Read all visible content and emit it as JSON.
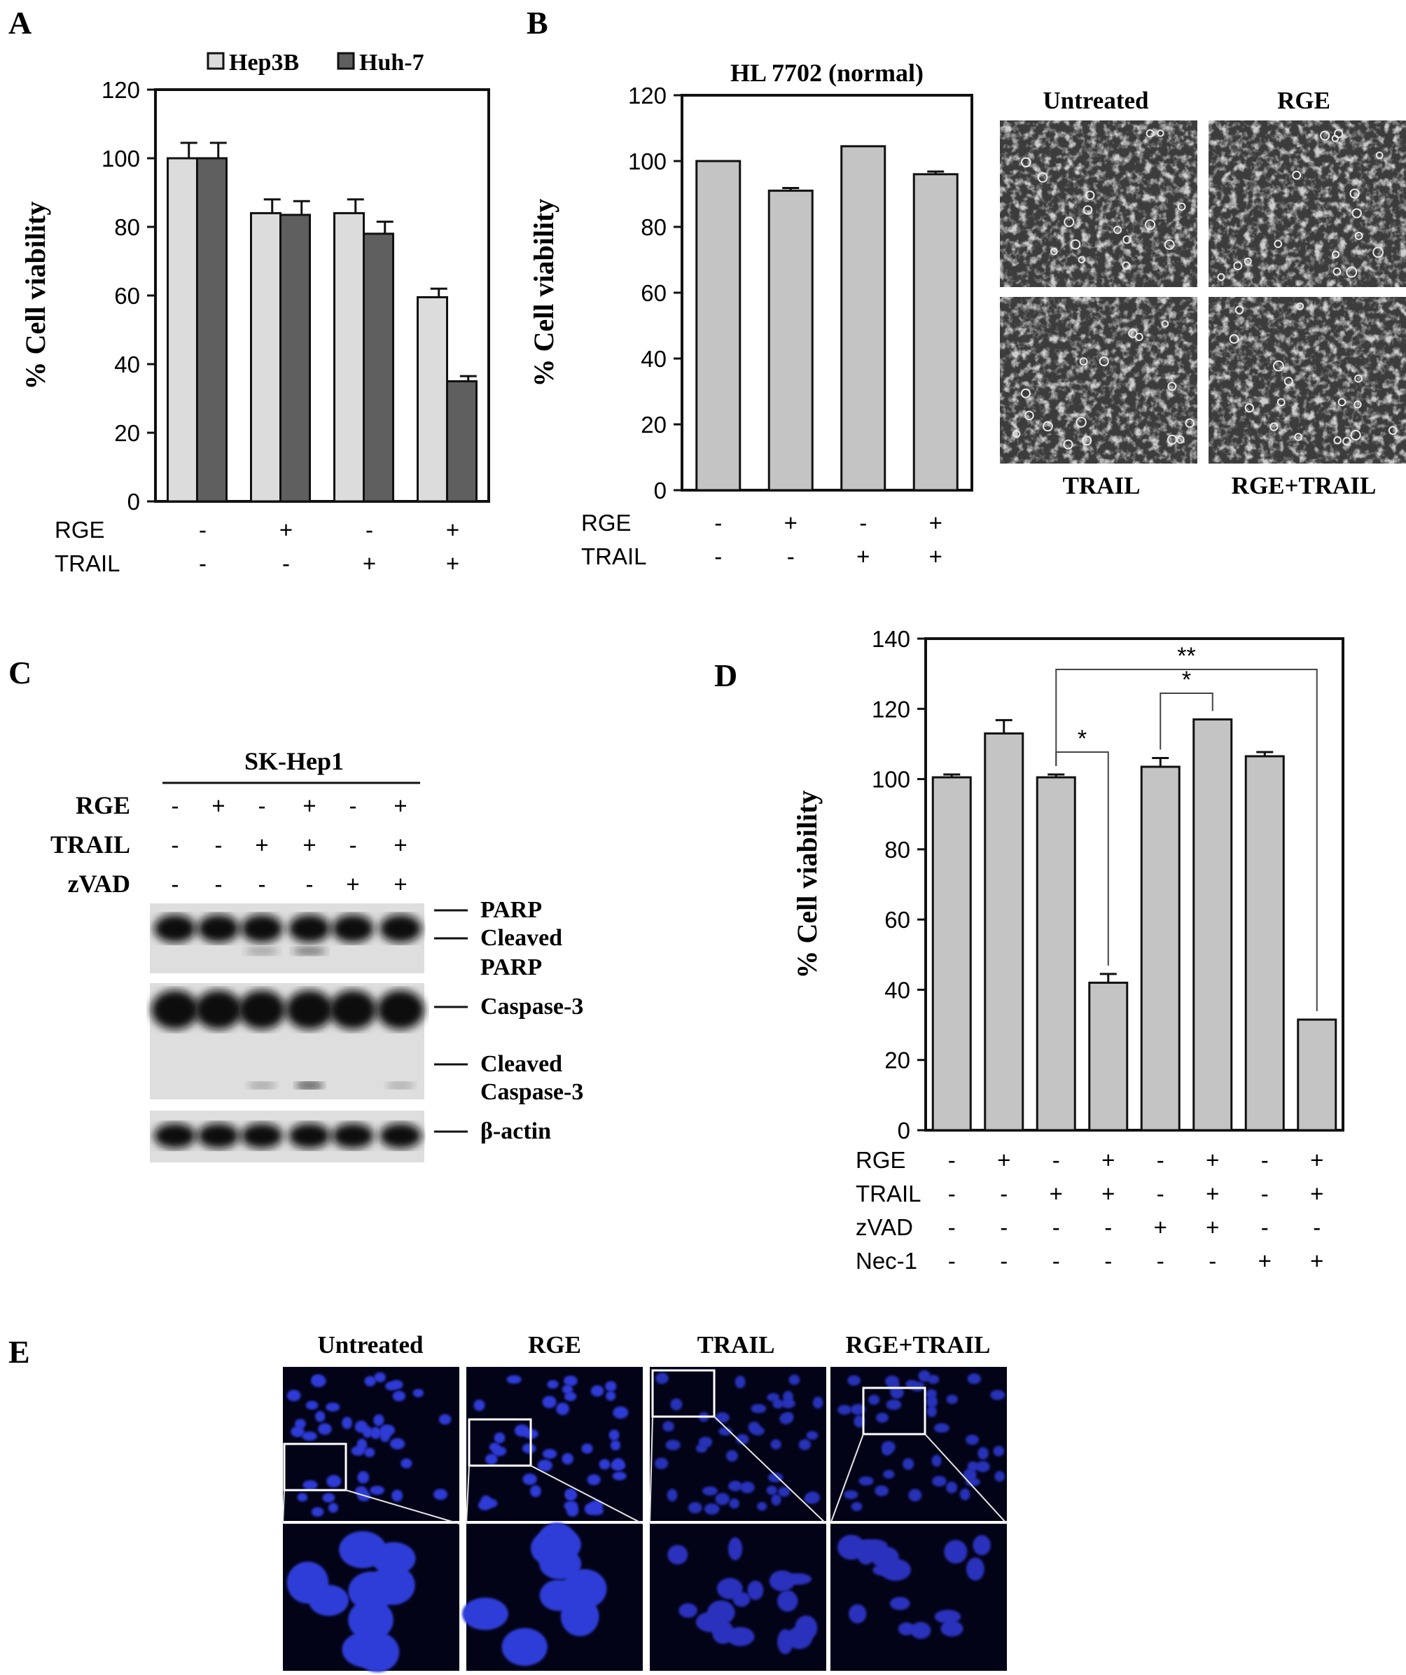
{
  "figure": {
    "panel_labels": [
      "A",
      "B",
      "C",
      "D",
      "E"
    ]
  },
  "chart_data": [
    {
      "panel": "A",
      "type": "bar",
      "title": "",
      "xlabel": "",
      "ylabel": "% Cell viability",
      "ylim": [
        0,
        120
      ],
      "yticks": [
        0,
        20,
        40,
        60,
        80,
        100,
        120
      ],
      "legend": {
        "placement": "top",
        "entries": [
          "Hep3B",
          "Huh-7"
        ]
      },
      "categories": [
        "1",
        "2",
        "3",
        "4"
      ],
      "conditions": [
        {
          "name": "RGE",
          "values": [
            "-",
            "+",
            "-",
            "+"
          ]
        },
        {
          "name": "TRAIL",
          "values": [
            "-",
            "-",
            "+",
            "+"
          ]
        }
      ],
      "series": [
        {
          "name": "Hep3B",
          "color": "#dcdcdc",
          "values": [
            100,
            84,
            84,
            59.5
          ],
          "errors": [
            4.5,
            4,
            4,
            2.5
          ]
        },
        {
          "name": "Huh-7",
          "color": "#5f5f5f",
          "values": [
            100,
            83.5,
            78,
            35
          ],
          "errors": [
            4.5,
            4,
            3.5,
            1.5
          ]
        }
      ]
    },
    {
      "panel": "B",
      "type": "bar",
      "title": "HL 7702 (normal)",
      "xlabel": "",
      "ylabel": "% Cell viability",
      "ylim": [
        0,
        120
      ],
      "yticks": [
        0,
        20,
        40,
        60,
        80,
        100,
        120
      ],
      "categories": [
        "1",
        "2",
        "3",
        "4"
      ],
      "conditions": [
        {
          "name": "RGE",
          "values": [
            "-",
            "+",
            "-",
            "+"
          ]
        },
        {
          "name": "TRAIL",
          "values": [
            "-",
            "-",
            "+",
            "+"
          ]
        }
      ],
      "series": [
        {
          "name": "",
          "color": "#c4c4c4",
          "values": [
            100,
            91,
            104.5,
            96
          ],
          "errors": [
            0,
            0.8,
            0,
            0.8
          ]
        }
      ]
    },
    {
      "panel": "D",
      "type": "bar",
      "title": "",
      "xlabel": "",
      "ylabel": "% Cell viability",
      "ylim": [
        0,
        140
      ],
      "yticks": [
        0,
        20,
        40,
        60,
        80,
        100,
        120,
        140
      ],
      "categories": [
        "1",
        "2",
        "3",
        "4",
        "5",
        "6",
        "7",
        "8"
      ],
      "conditions": [
        {
          "name": "RGE",
          "values": [
            "-",
            "+",
            "-",
            "+",
            "-",
            "+",
            "-",
            "+"
          ]
        },
        {
          "name": "TRAIL",
          "values": [
            "-",
            "-",
            "+",
            "+",
            "-",
            "+",
            "-",
            "+"
          ]
        },
        {
          "name": "zVAD",
          "values": [
            "-",
            "-",
            "-",
            "-",
            "+",
            "+",
            "-",
            "-"
          ]
        },
        {
          "name": "Nec-1",
          "values": [
            "-",
            "-",
            "-",
            "-",
            "-",
            "-",
            "+",
            "+"
          ]
        }
      ],
      "series": [
        {
          "name": "",
          "color": "#c4c4c4",
          "values": [
            100.5,
            113,
            100.5,
            42,
            103.5,
            117,
            106.5,
            31.5
          ],
          "errors": [
            0.8,
            3.8,
            0.8,
            2.5,
            2.5,
            0,
            1.2,
            0
          ]
        }
      ],
      "significance": [
        {
          "from": 3,
          "to": 4,
          "label": "*"
        },
        {
          "from": 5,
          "to": 6,
          "label": "*"
        },
        {
          "from": 3,
          "to": 8,
          "label": "**"
        }
      ]
    }
  ],
  "panelB_images": {
    "labels": [
      "Untreated",
      "RGE",
      "TRAIL",
      "RGE+TRAIL"
    ]
  },
  "panelC": {
    "cell_line": "SK-Hep1",
    "conditions": [
      {
        "name": "RGE",
        "values": [
          "-",
          "+",
          "-",
          "+",
          "-",
          "+"
        ]
      },
      {
        "name": "TRAIL",
        "values": [
          "-",
          "-",
          "+",
          "+",
          "-",
          "+"
        ]
      },
      {
        "name": "zVAD",
        "values": [
          "-",
          "-",
          "-",
          "-",
          "+",
          "+"
        ]
      }
    ],
    "bands": [
      "PARP",
      "Cleaved",
      "PARP",
      "Caspase-3",
      "Cleaved",
      "Caspase-3",
      "β-actin"
    ]
  },
  "panelE": {
    "labels": [
      "Untreated",
      "RGE",
      "TRAIL",
      "RGE+TRAIL"
    ]
  }
}
